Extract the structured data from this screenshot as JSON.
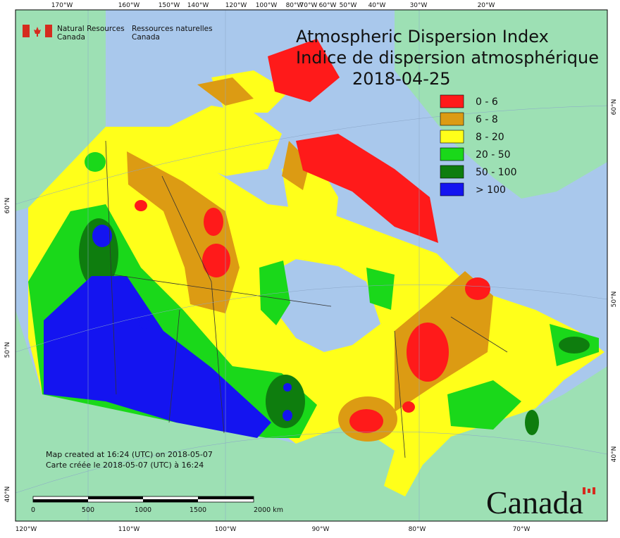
{
  "header": {
    "agency_en": [
      "Natural Resources",
      "Canada"
    ],
    "agency_fr": [
      "Ressources naturelles",
      "Canada"
    ]
  },
  "title": [
    "Atmospheric Dispersion Index",
    "Indice de dispersion atmosphérique"
  ],
  "date": "2018-04-25",
  "legend": [
    {
      "label": "0 - 6",
      "color": "#ff1a1a"
    },
    {
      "label": "6 - 8",
      "color": "#dc9b13"
    },
    {
      "label": "8 - 20",
      "color": "#ffff1a"
    },
    {
      "label": "20 - 50",
      "color": "#1ad81a"
    },
    {
      "label": "50 - 100",
      "color": "#0e7d0e"
    },
    {
      "label": "> 100",
      "color": "#1414f0"
    }
  ],
  "graticule": {
    "top": [
      "170°W",
      "160°W",
      "150°W",
      "140°W",
      "120°W",
      "100°W",
      "80°W",
      "70°W",
      "60°W",
      "50°W",
      "40°W",
      "30°W",
      "20°W"
    ],
    "bottom": [
      "120°W",
      "110°W",
      "100°W",
      "90°W",
      "80°W",
      "70°W"
    ],
    "left": [
      "60°N",
      "50°N",
      "40°N"
    ],
    "right": [
      "60°N",
      "50°N",
      "40°N"
    ]
  },
  "footer": [
    "Map created at 16:24 (UTC) on 2018-05-07",
    "Carte créée le 2018-05-07 (UTC) à 16:24"
  ],
  "scale_bar": [
    "0",
    "500",
    "1000",
    "1500",
    "2000 km"
  ],
  "wordmark": "Canada"
}
